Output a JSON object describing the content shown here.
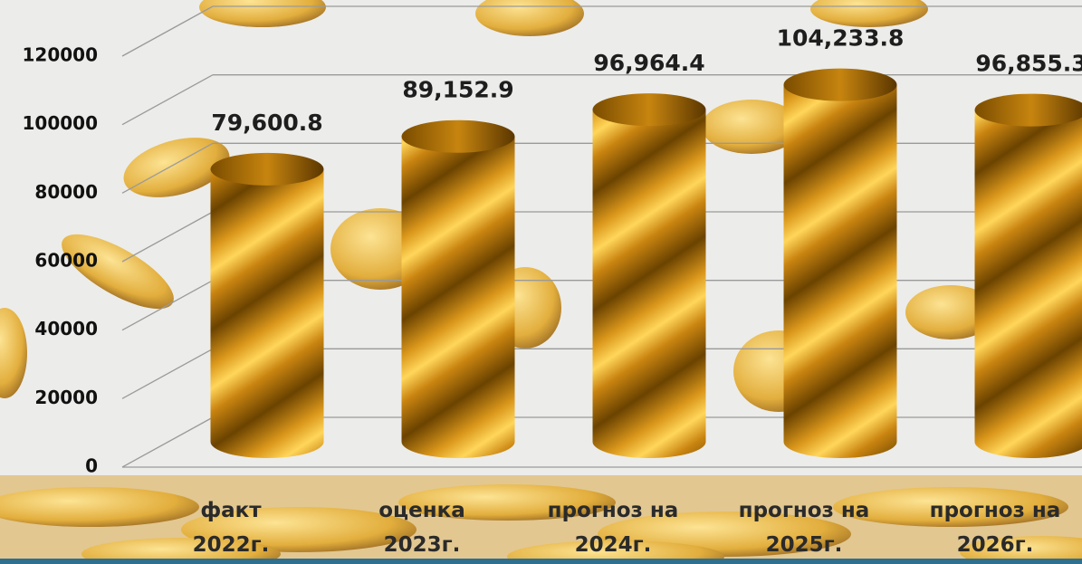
{
  "chart_data": {
    "type": "bar",
    "categories": [
      "факт\n2022г.",
      "оценка\n2023г.",
      "прогноз на\n2024г.",
      "прогноз на\n2025г.",
      "прогноз на\n2026г."
    ],
    "values": [
      79600.8,
      89152.9,
      96964.4,
      104233.8,
      96855.3
    ],
    "value_labels": [
      "79,600.8",
      "89,152.9",
      "96,964.4",
      "104,233.8",
      "96,855.3"
    ],
    "color": "#d99a1c",
    "ylim": [
      0,
      120000
    ],
    "yticks": [
      0,
      20000,
      40000,
      60000,
      80000,
      100000,
      120000
    ],
    "grid": true
  }
}
